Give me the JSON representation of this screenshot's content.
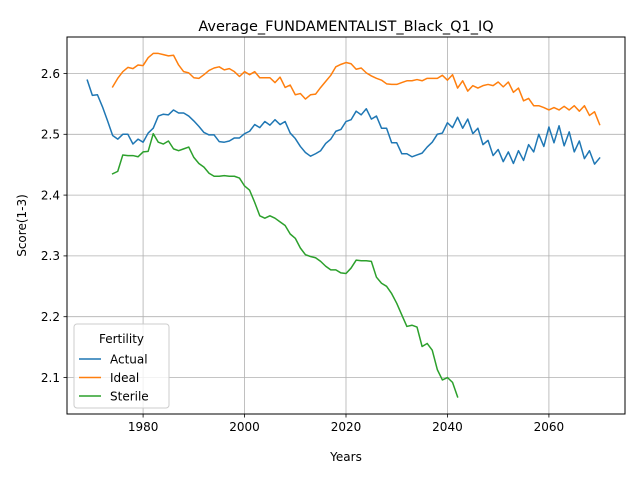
{
  "chart_data": {
    "type": "line",
    "title": "Average_FUNDAMENTALIST_Black_Q1_IQ",
    "xlabel": "Years",
    "ylabel": "Score(1-3)",
    "xlim": [
      1965,
      2075
    ],
    "ylim": [
      2.04,
      2.66
    ],
    "xticks": [
      1980,
      2000,
      2020,
      2040,
      2060
    ],
    "yticks": [
      2.1,
      2.2,
      2.3,
      2.4,
      2.5,
      2.6
    ],
    "grid": true,
    "legend": {
      "title": "Fertility",
      "position": "lower-left"
    },
    "series": [
      {
        "name": "Actual",
        "color": "#1f77b4",
        "points": [
          [
            1969,
            2.589
          ],
          [
            1970,
            2.564
          ],
          [
            1971,
            2.565
          ],
          [
            1972,
            2.545
          ],
          [
            1973,
            2.522
          ],
          [
            1974,
            2.498
          ],
          [
            1975,
            2.492
          ],
          [
            1976,
            2.5
          ],
          [
            1977,
            2.5
          ],
          [
            1978,
            2.484
          ],
          [
            1979,
            2.492
          ],
          [
            1980,
            2.487
          ],
          [
            1981,
            2.502
          ],
          [
            1982,
            2.51
          ],
          [
            1983,
            2.53
          ],
          [
            1984,
            2.533
          ],
          [
            1985,
            2.532
          ],
          [
            1986,
            2.54
          ],
          [
            1987,
            2.535
          ],
          [
            1988,
            2.535
          ],
          [
            1989,
            2.53
          ],
          [
            1990,
            2.522
          ],
          [
            1991,
            2.513
          ],
          [
            1992,
            2.503
          ],
          [
            1993,
            2.499
          ],
          [
            1994,
            2.499
          ],
          [
            1995,
            2.488
          ],
          [
            1996,
            2.487
          ],
          [
            1997,
            2.489
          ],
          [
            1998,
            2.494
          ],
          [
            1999,
            2.494
          ],
          [
            2000,
            2.501
          ],
          [
            2001,
            2.505
          ],
          [
            2002,
            2.516
          ],
          [
            2003,
            2.511
          ],
          [
            2004,
            2.521
          ],
          [
            2005,
            2.515
          ],
          [
            2006,
            2.524
          ],
          [
            2007,
            2.516
          ],
          [
            2008,
            2.521
          ],
          [
            2009,
            2.502
          ],
          [
            2010,
            2.493
          ],
          [
            2011,
            2.48
          ],
          [
            2012,
            2.47
          ],
          [
            2013,
            2.464
          ],
          [
            2014,
            2.468
          ],
          [
            2015,
            2.473
          ],
          [
            2016,
            2.485
          ],
          [
            2017,
            2.492
          ],
          [
            2018,
            2.505
          ],
          [
            2019,
            2.508
          ],
          [
            2020,
            2.521
          ],
          [
            2021,
            2.524
          ],
          [
            2022,
            2.538
          ],
          [
            2023,
            2.532
          ],
          [
            2024,
            2.542
          ],
          [
            2025,
            2.525
          ],
          [
            2026,
            2.53
          ],
          [
            2027,
            2.51
          ],
          [
            2028,
            2.51
          ],
          [
            2029,
            2.486
          ],
          [
            2030,
            2.486
          ],
          [
            2031,
            2.468
          ],
          [
            2032,
            2.468
          ],
          [
            2033,
            2.463
          ],
          [
            2034,
            2.466
          ],
          [
            2035,
            2.469
          ],
          [
            2036,
            2.479
          ],
          [
            2037,
            2.487
          ],
          [
            2038,
            2.5
          ],
          [
            2039,
            2.502
          ],
          [
            2040,
            2.519
          ],
          [
            2041,
            2.511
          ],
          [
            2042,
            2.528
          ],
          [
            2043,
            2.51
          ],
          [
            2044,
            2.525
          ],
          [
            2045,
            2.501
          ],
          [
            2046,
            2.51
          ],
          [
            2047,
            2.483
          ],
          [
            2048,
            2.49
          ],
          [
            2049,
            2.465
          ],
          [
            2050,
            2.475
          ],
          [
            2051,
            2.455
          ],
          [
            2052,
            2.471
          ],
          [
            2053,
            2.452
          ],
          [
            2054,
            2.473
          ],
          [
            2055,
            2.457
          ],
          [
            2056,
            2.483
          ],
          [
            2057,
            2.471
          ],
          [
            2058,
            2.5
          ],
          [
            2059,
            2.48
          ],
          [
            2060,
            2.512
          ],
          [
            2061,
            2.486
          ],
          [
            2062,
            2.514
          ],
          [
            2063,
            2.481
          ],
          [
            2064,
            2.504
          ],
          [
            2065,
            2.471
          ],
          [
            2066,
            2.489
          ],
          [
            2067,
            2.46
          ],
          [
            2068,
            2.473
          ],
          [
            2069,
            2.451
          ],
          [
            2070,
            2.461
          ]
        ]
      },
      {
        "name": "Ideal",
        "color": "#ff7f0e",
        "points": [
          [
            1974,
            2.578
          ],
          [
            1975,
            2.592
          ],
          [
            1976,
            2.603
          ],
          [
            1977,
            2.61
          ],
          [
            1978,
            2.608
          ],
          [
            1979,
            2.614
          ],
          [
            1980,
            2.613
          ],
          [
            1981,
            2.626
          ],
          [
            1982,
            2.633
          ],
          [
            1983,
            2.633
          ],
          [
            1984,
            2.631
          ],
          [
            1985,
            2.629
          ],
          [
            1986,
            2.63
          ],
          [
            1987,
            2.614
          ],
          [
            1988,
            2.603
          ],
          [
            1989,
            2.601
          ],
          [
            1990,
            2.593
          ],
          [
            1991,
            2.592
          ],
          [
            1992,
            2.598
          ],
          [
            1993,
            2.605
          ],
          [
            1994,
            2.609
          ],
          [
            1995,
            2.611
          ],
          [
            1996,
            2.606
          ],
          [
            1997,
            2.608
          ],
          [
            1998,
            2.603
          ],
          [
            1999,
            2.595
          ],
          [
            2000,
            2.603
          ],
          [
            2001,
            2.598
          ],
          [
            2002,
            2.603
          ],
          [
            2003,
            2.593
          ],
          [
            2004,
            2.593
          ],
          [
            2005,
            2.593
          ],
          [
            2006,
            2.585
          ],
          [
            2007,
            2.594
          ],
          [
            2008,
            2.577
          ],
          [
            2009,
            2.581
          ],
          [
            2010,
            2.565
          ],
          [
            2011,
            2.567
          ],
          [
            2012,
            2.558
          ],
          [
            2013,
            2.565
          ],
          [
            2014,
            2.566
          ],
          [
            2015,
            2.577
          ],
          [
            2016,
            2.587
          ],
          [
            2017,
            2.597
          ],
          [
            2018,
            2.611
          ],
          [
            2019,
            2.615
          ],
          [
            2020,
            2.618
          ],
          [
            2021,
            2.616
          ],
          [
            2022,
            2.607
          ],
          [
            2023,
            2.609
          ],
          [
            2024,
            2.601
          ],
          [
            2025,
            2.596
          ],
          [
            2026,
            2.592
          ],
          [
            2027,
            2.589
          ],
          [
            2028,
            2.583
          ],
          [
            2029,
            2.582
          ],
          [
            2030,
            2.582
          ],
          [
            2031,
            2.585
          ],
          [
            2032,
            2.588
          ],
          [
            2033,
            2.588
          ],
          [
            2034,
            2.59
          ],
          [
            2035,
            2.588
          ],
          [
            2036,
            2.592
          ],
          [
            2037,
            2.592
          ],
          [
            2038,
            2.592
          ],
          [
            2039,
            2.597
          ],
          [
            2040,
            2.589
          ],
          [
            2041,
            2.598
          ],
          [
            2042,
            2.576
          ],
          [
            2043,
            2.588
          ],
          [
            2044,
            2.571
          ],
          [
            2045,
            2.58
          ],
          [
            2046,
            2.576
          ],
          [
            2047,
            2.58
          ],
          [
            2048,
            2.582
          ],
          [
            2049,
            2.58
          ],
          [
            2050,
            2.586
          ],
          [
            2051,
            2.578
          ],
          [
            2052,
            2.586
          ],
          [
            2053,
            2.569
          ],
          [
            2054,
            2.576
          ],
          [
            2055,
            2.555
          ],
          [
            2056,
            2.559
          ],
          [
            2057,
            2.547
          ],
          [
            2058,
            2.547
          ],
          [
            2059,
            2.544
          ],
          [
            2060,
            2.54
          ],
          [
            2061,
            2.544
          ],
          [
            2062,
            2.54
          ],
          [
            2063,
            2.546
          ],
          [
            2064,
            2.54
          ],
          [
            2065,
            2.547
          ],
          [
            2066,
            2.538
          ],
          [
            2067,
            2.547
          ],
          [
            2068,
            2.531
          ],
          [
            2069,
            2.537
          ],
          [
            2070,
            2.516
          ]
        ]
      },
      {
        "name": "Sterile",
        "color": "#2ca02c",
        "points": [
          [
            1974,
            2.435
          ],
          [
            1975,
            2.439
          ],
          [
            1976,
            2.466
          ],
          [
            1977,
            2.465
          ],
          [
            1978,
            2.465
          ],
          [
            1979,
            2.463
          ],
          [
            1980,
            2.471
          ],
          [
            1981,
            2.472
          ],
          [
            1982,
            2.501
          ],
          [
            1983,
            2.487
          ],
          [
            1984,
            2.484
          ],
          [
            1985,
            2.489
          ],
          [
            1986,
            2.476
          ],
          [
            1987,
            2.473
          ],
          [
            1988,
            2.476
          ],
          [
            1989,
            2.479
          ],
          [
            1990,
            2.462
          ],
          [
            1991,
            2.452
          ],
          [
            1992,
            2.446
          ],
          [
            1993,
            2.436
          ],
          [
            1994,
            2.431
          ],
          [
            1995,
            2.431
          ],
          [
            1996,
            2.432
          ],
          [
            1997,
            2.431
          ],
          [
            1998,
            2.431
          ],
          [
            1999,
            2.428
          ],
          [
            2000,
            2.415
          ],
          [
            2001,
            2.408
          ],
          [
            2002,
            2.388
          ],
          [
            2003,
            2.366
          ],
          [
            2004,
            2.362
          ],
          [
            2005,
            2.366
          ],
          [
            2006,
            2.362
          ],
          [
            2007,
            2.356
          ],
          [
            2008,
            2.35
          ],
          [
            2009,
            2.336
          ],
          [
            2010,
            2.329
          ],
          [
            2011,
            2.313
          ],
          [
            2012,
            2.302
          ],
          [
            2013,
            2.299
          ],
          [
            2014,
            2.297
          ],
          [
            2015,
            2.291
          ],
          [
            2016,
            2.283
          ],
          [
            2017,
            2.277
          ],
          [
            2018,
            2.277
          ],
          [
            2019,
            2.272
          ],
          [
            2020,
            2.271
          ],
          [
            2021,
            2.28
          ],
          [
            2022,
            2.293
          ],
          [
            2023,
            2.292
          ],
          [
            2024,
            2.292
          ],
          [
            2025,
            2.291
          ],
          [
            2026,
            2.265
          ],
          [
            2027,
            2.255
          ],
          [
            2028,
            2.25
          ],
          [
            2029,
            2.238
          ],
          [
            2030,
            2.222
          ],
          [
            2031,
            2.203
          ],
          [
            2032,
            2.184
          ],
          [
            2033,
            2.186
          ],
          [
            2034,
            2.183
          ],
          [
            2035,
            2.151
          ],
          [
            2036,
            2.156
          ],
          [
            2037,
            2.145
          ],
          [
            2038,
            2.113
          ],
          [
            2039,
            2.096
          ],
          [
            2040,
            2.1
          ],
          [
            2041,
            2.092
          ],
          [
            2042,
            2.068
          ]
        ]
      }
    ]
  }
}
